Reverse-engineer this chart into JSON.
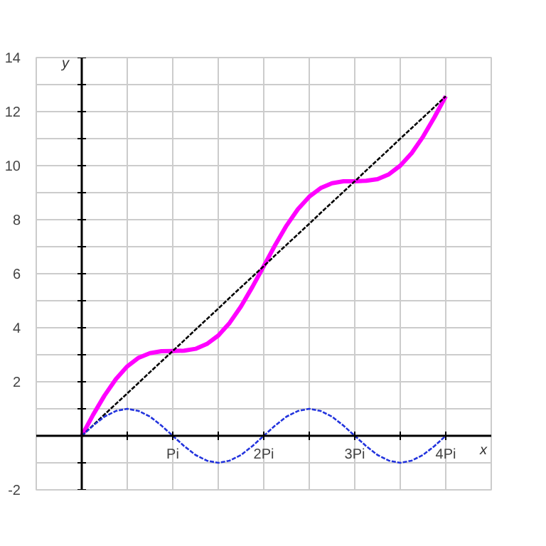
{
  "chart_data": {
    "type": "line",
    "xlabel": "x",
    "ylabel": "y",
    "x": [
      0,
      0.125,
      0.25,
      0.375,
      0.5,
      0.625,
      0.75,
      0.875,
      1,
      1.125,
      1.25,
      1.375,
      1.5,
      1.625,
      1.75,
      1.875,
      2,
      2.125,
      2.25,
      2.375,
      2.5,
      2.625,
      2.75,
      2.875,
      3,
      3.125,
      3.25,
      3.375,
      3.5,
      3.625,
      3.75,
      3.875,
      4
    ],
    "series": [
      {
        "color": "#ff00ff",
        "line_style": "solid",
        "values": [
          0,
          0.78,
          1.49,
          2.1,
          2.57,
          2.89,
          3.06,
          3.13,
          3.14,
          3.15,
          3.22,
          3.4,
          3.71,
          4.18,
          4.79,
          5.51,
          6.28,
          7.06,
          7.78,
          8.39,
          8.85,
          9.17,
          9.35,
          9.42,
          9.42,
          9.44,
          9.5,
          9.68,
          10.0,
          10.46,
          11.07,
          11.79,
          12.57
        ]
      },
      {
        "color": "#000000",
        "line_style": "dashed",
        "values": [
          0,
          0.39,
          0.79,
          1.18,
          1.57,
          1.96,
          2.36,
          2.75,
          3.14,
          3.53,
          3.93,
          4.32,
          4.71,
          5.11,
          5.5,
          5.89,
          6.28,
          6.68,
          7.07,
          7.46,
          7.85,
          8.25,
          8.64,
          9.03,
          9.42,
          9.82,
          10.21,
          10.6,
          11.0,
          11.39,
          11.78,
          12.17,
          12.57
        ]
      },
      {
        "color": "#2233dd",
        "line_style": "dashed",
        "values": [
          0,
          0.38,
          0.71,
          0.92,
          1,
          0.92,
          0.71,
          0.38,
          0,
          -0.38,
          -0.71,
          -0.92,
          -1,
          -0.92,
          -0.71,
          -0.38,
          0,
          0.38,
          0.71,
          0.92,
          1,
          0.92,
          0.71,
          0.38,
          0,
          -0.38,
          -0.71,
          -0.92,
          -1,
          -0.92,
          -0.71,
          -0.38,
          0
        ]
      }
    ],
    "xlim": [
      -0.5,
      4.5
    ],
    "ylim": [
      -2,
      14
    ],
    "xticks": [
      {
        "value": 0.5,
        "label": null
      },
      {
        "value": 1,
        "label": "Pi"
      },
      {
        "value": 1.5,
        "label": null
      },
      {
        "value": 2,
        "label": "2Pi"
      },
      {
        "value": 2.5,
        "label": null
      },
      {
        "value": 3,
        "label": "3Pi"
      },
      {
        "value": 3.5,
        "label": null
      },
      {
        "value": 4,
        "label": "4Pi"
      }
    ],
    "yticks": [
      -2,
      {
        "value": -1,
        "label": null
      },
      {
        "value": 1,
        "label": null
      },
      2,
      {
        "value": 3,
        "label": null
      },
      4,
      {
        "value": 5,
        "label": null
      },
      6,
      {
        "value": 7,
        "label": null
      },
      8,
      {
        "value": 9,
        "label": null
      },
      10,
      {
        "value": 11,
        "label": null
      },
      12,
      {
        "value": 13,
        "label": null
      },
      14
    ],
    "grid": true,
    "marker": "none"
  }
}
